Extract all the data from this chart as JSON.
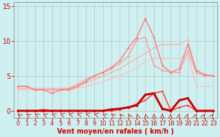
{
  "bg_color": "#cff0f0",
  "grid_color": "#aaaaaa",
  "xlabel": "Vent moyen/en rafales ( km/h )",
  "xlim": [
    -0.5,
    23.5
  ],
  "ylim": [
    -1.0,
    15.5
  ],
  "xticks": [
    0,
    1,
    2,
    3,
    4,
    5,
    6,
    7,
    8,
    9,
    10,
    11,
    12,
    13,
    14,
    15,
    16,
    17,
    18,
    19,
    20,
    21,
    22,
    23
  ],
  "yticks": [
    0,
    5,
    10,
    15
  ],
  "lines": [
    {
      "x": [
        0,
        1,
        2,
        3,
        4,
        5,
        6,
        7,
        8,
        9,
        10,
        11,
        12,
        13,
        14,
        15,
        16,
        17,
        18,
        19,
        20,
        21,
        22,
        23
      ],
      "y": [
        3.0,
        3.0,
        3.0,
        3.0,
        3.0,
        3.0,
        3.0,
        3.2,
        3.5,
        3.8,
        4.2,
        4.6,
        5.0,
        5.5,
        6.2,
        7.0,
        7.5,
        7.5,
        7.5,
        7.5,
        8.0,
        3.5,
        3.5,
        3.5
      ],
      "color": "#ffbbbb",
      "lw": 0.9,
      "marker": null,
      "ms": 0
    },
    {
      "x": [
        0,
        1,
        2,
        3,
        4,
        5,
        6,
        7,
        8,
        9,
        10,
        11,
        12,
        13,
        14,
        15,
        16,
        17,
        18,
        19,
        20,
        21,
        22,
        23
      ],
      "y": [
        3.2,
        3.2,
        3.2,
        3.2,
        3.2,
        3.2,
        3.2,
        3.5,
        4.0,
        4.5,
        5.0,
        5.5,
        6.0,
        6.8,
        7.5,
        8.2,
        9.0,
        9.5,
        9.5,
        9.5,
        10.2,
        5.5,
        5.0,
        5.0
      ],
      "color": "#ffaaaa",
      "lw": 0.9,
      "marker": "o",
      "ms": 1.5
    },
    {
      "x": [
        0,
        1,
        2,
        3,
        4,
        5,
        6,
        7,
        8,
        9,
        10,
        11,
        12,
        13,
        14,
        15,
        16,
        17,
        18,
        19,
        20,
        21,
        22,
        23
      ],
      "y": [
        3.5,
        3.5,
        3.0,
        3.0,
        3.0,
        3.0,
        3.2,
        3.8,
        4.5,
        5.0,
        5.5,
        6.0,
        6.8,
        7.8,
        10.2,
        10.5,
        6.5,
        5.8,
        5.5,
        5.5,
        8.5,
        5.5,
        5.0,
        5.0
      ],
      "color": "#ff9999",
      "lw": 1.0,
      "marker": "o",
      "ms": 2.0
    },
    {
      "x": [
        0,
        1,
        2,
        3,
        4,
        5,
        6,
        7,
        8,
        9,
        10,
        11,
        12,
        13,
        14,
        15,
        16,
        17,
        18,
        19,
        20,
        21,
        22,
        23
      ],
      "y": [
        3.5,
        3.5,
        3.0,
        3.0,
        2.5,
        3.0,
        3.0,
        3.5,
        4.2,
        5.0,
        5.5,
        6.2,
        7.2,
        9.0,
        10.5,
        13.2,
        10.5,
        6.5,
        5.5,
        6.0,
        9.5,
        5.8,
        5.2,
        5.0
      ],
      "color": "#ff7777",
      "lw": 1.0,
      "marker": "o",
      "ms": 2.0
    },
    {
      "x": [
        0,
        1,
        2,
        3,
        4,
        5,
        6,
        7,
        8,
        9,
        10,
        11,
        12,
        13,
        14,
        15,
        16,
        17,
        18,
        19,
        20,
        21,
        22,
        23
      ],
      "y": [
        0.0,
        0.0,
        0.0,
        0.2,
        0.0,
        0.0,
        0.0,
        0.0,
        0.0,
        0.0,
        0.0,
        0.0,
        0.2,
        0.5,
        1.0,
        1.5,
        2.5,
        2.8,
        0.0,
        0.5,
        0.8,
        0.0,
        0.0,
        0.0
      ],
      "color": "#ff4444",
      "lw": 1.2,
      "marker": "o",
      "ms": 2.0
    },
    {
      "x": [
        0,
        1,
        2,
        3,
        4,
        5,
        6,
        7,
        8,
        9,
        10,
        11,
        12,
        13,
        14,
        15,
        16,
        17,
        18,
        19,
        20,
        21,
        22,
        23
      ],
      "y": [
        0.0,
        0.0,
        0.0,
        0.0,
        0.0,
        0.0,
        0.0,
        0.0,
        0.0,
        0.0,
        0.0,
        0.2,
        0.3,
        0.5,
        0.8,
        2.3,
        2.5,
        0.3,
        0.0,
        1.5,
        1.8,
        0.0,
        0.0,
        0.0
      ],
      "color": "#cc0000",
      "lw": 2.2,
      "marker": "o",
      "ms": 2.5
    }
  ],
  "xlabel_color": "#cc0000",
  "xlabel_fontsize": 7,
  "tick_fontsize": 6,
  "tick_color": "#cc0000"
}
